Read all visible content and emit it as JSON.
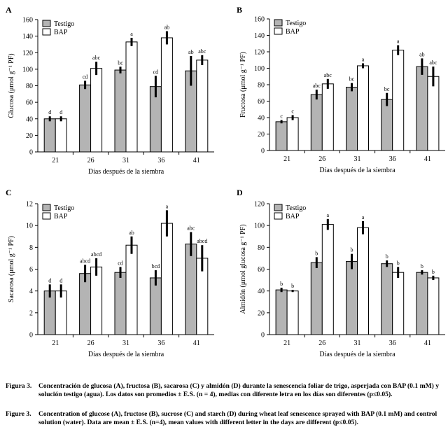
{
  "chart_data": [
    {
      "type": "bar",
      "panel": "A",
      "ylabel": "Glucosa (μmol g⁻¹ PF)",
      "xlabel": "Días después de la siembra",
      "ylim": [
        0,
        160
      ],
      "yticks": [
        0,
        20,
        40,
        60,
        80,
        100,
        120,
        140,
        160
      ],
      "categories": [
        "21",
        "26",
        "31",
        "36",
        "41"
      ],
      "legend": "top-left",
      "series": [
        {
          "name": "Testigo",
          "color": "#b4b4b4",
          "values": [
            40,
            81,
            99,
            79,
            98
          ],
          "errors": [
            3,
            5,
            4,
            13,
            18
          ],
          "letters": [
            "d",
            "cd",
            "bc",
            "cd",
            "ab"
          ]
        },
        {
          "name": "BAP",
          "color": "#ffffff",
          "values": [
            40,
            101,
            133,
            138,
            111
          ],
          "errors": [
            3,
            8,
            5,
            8,
            6
          ],
          "letters": [
            "d",
            "abc",
            "a",
            "ab",
            "abc"
          ]
        }
      ]
    },
    {
      "type": "bar",
      "panel": "B",
      "ylabel": "Fructosa (μmol g⁻¹ PF)",
      "xlabel": "Días después de la siembra",
      "ylim": [
        0,
        160
      ],
      "yticks": [
        0,
        20,
        40,
        60,
        80,
        100,
        120,
        140,
        160
      ],
      "categories": [
        "21",
        "26",
        "31",
        "36",
        "41"
      ],
      "legend": "top-left",
      "series": [
        {
          "name": "Testigo",
          "color": "#b4b4b4",
          "values": [
            35,
            68,
            77,
            62,
            102
          ],
          "errors": [
            2,
            6,
            5,
            8,
            10
          ],
          "letters": [
            "c",
            "abc",
            "bc",
            "bc",
            "ab"
          ]
        },
        {
          "name": "BAP",
          "color": "#ffffff",
          "values": [
            40,
            81,
            103,
            122,
            90
          ],
          "errors": [
            3,
            6,
            3,
            6,
            12
          ],
          "letters": [
            "c",
            "abc",
            "a",
            "a",
            "abc"
          ]
        }
      ]
    },
    {
      "type": "bar",
      "panel": "C",
      "ylabel": "Sacarosa (μmol g⁻¹ PF)",
      "xlabel": "Días después de la siembra",
      "ylim": [
        0,
        12
      ],
      "yticks": [
        0,
        2,
        4,
        6,
        8,
        10,
        12
      ],
      "categories": [
        "21",
        "26",
        "31",
        "36",
        "41"
      ],
      "legend": "top-left",
      "series": [
        {
          "name": "Testigo",
          "color": "#b4b4b4",
          "values": [
            4.0,
            5.6,
            5.7,
            5.2,
            8.3
          ],
          "errors": [
            0.6,
            0.8,
            0.5,
            0.7,
            1.1
          ],
          "letters": [
            "d",
            "abcd",
            "cd",
            "bcd",
            "abc"
          ]
        },
        {
          "name": "BAP",
          "color": "#ffffff",
          "values": [
            4.0,
            6.2,
            8.2,
            10.2,
            7.0
          ],
          "errors": [
            0.6,
            0.8,
            0.8,
            1.2,
            1.2
          ],
          "letters": [
            "d",
            "abcd",
            "ab",
            "a",
            "abcd"
          ]
        }
      ]
    },
    {
      "type": "bar",
      "panel": "D",
      "ylabel": "Almidón (μmol glucosa g⁻¹ PF)",
      "xlabel": "Días después de la siembra",
      "ylim": [
        0,
        120
      ],
      "yticks": [
        0,
        20,
        40,
        60,
        80,
        100,
        120
      ],
      "categories": [
        "21",
        "26",
        "31",
        "36",
        "41"
      ],
      "legend": "top-left",
      "series": [
        {
          "name": "Testigo",
          "color": "#b4b4b4",
          "values": [
            41,
            66,
            67,
            65,
            57
          ],
          "errors": [
            2,
            5,
            7,
            3,
            2
          ],
          "letters": [
            "b",
            "b",
            "b",
            "b",
            "b"
          ]
        },
        {
          "name": "BAP",
          "color": "#ffffff",
          "values": [
            40,
            101,
            98,
            57,
            52
          ],
          "errors": [
            1,
            5,
            6,
            5,
            2
          ],
          "letters": [
            "b",
            "a",
            "a",
            "b",
            "b"
          ]
        }
      ]
    }
  ],
  "caption": {
    "es_label": "Figura 3.",
    "es_text": "Concentración de glucosa (A), fructosa (B), sacarosa (C) y almidón (D) durante la senescencia foliar de trigo, asperjada con BAP (0.1 mM) y solución testigo (agua). Los datos son promedios ± E.S. (n = 4), medias con diferente letra en los días son diferentes (p≤0.05).",
    "en_label": "Figure 3.",
    "en_text": "Concentration of glucose (A), fructose (B), sucrose (C) and starch (D) during wheat leaf senescence sprayed with BAP (0.1 mM) and control solution (water). Data are mean ± E.S. (n=4), mean values with different letter in the days are different (p≤0.05)."
  }
}
